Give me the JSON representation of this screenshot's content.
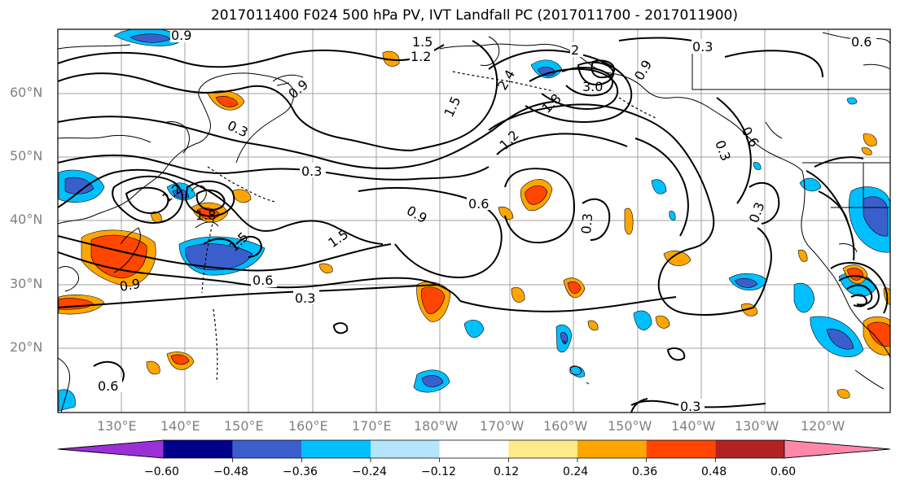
{
  "title": "2017011400 F024 500 hPa PV, IVT Landfall PC (2017011700 - 2017011900)",
  "lat_labels": [
    "60°N",
    "50°N",
    "40°N",
    "30°N",
    "20°N"
  ],
  "lon_labels": [
    "130°E",
    "140°E",
    "150°E",
    "160°E",
    "170°E",
    "180°W",
    "170°W",
    "160°W",
    "150°W",
    "140°W",
    "130°W",
    "120°W"
  ],
  "colorbar": {
    "tick_labels": [
      "−0.60",
      "−0.48",
      "−0.36",
      "−0.24",
      "−0.12",
      "0.12",
      "0.24",
      "0.36",
      "0.48",
      "0.60"
    ],
    "colors": [
      "#9b30d9",
      "#00008b",
      "#3a5fcd",
      "#00bfff",
      "#b3e5fc",
      "#ffffff",
      "#ffeb8a",
      "#ffa500",
      "#ff4500",
      "#b22222",
      "#ff88aa"
    ]
  },
  "contour_labels": [
    "0.9",
    "1.5",
    "1.2",
    "2",
    "0.3",
    "0.6",
    "0.3",
    "0.9",
    "2.4",
    "3.0",
    "1.8",
    "1.5",
    "0.9",
    "0.3",
    "0.6",
    "1.8",
    "1.2",
    "1.5",
    "0.3",
    "1.5",
    "0.9",
    "0.6",
    "0.6",
    "0.9",
    "0.3",
    "0.3",
    "0.3",
    "0.6",
    "0.3",
    "1.2"
  ]
}
